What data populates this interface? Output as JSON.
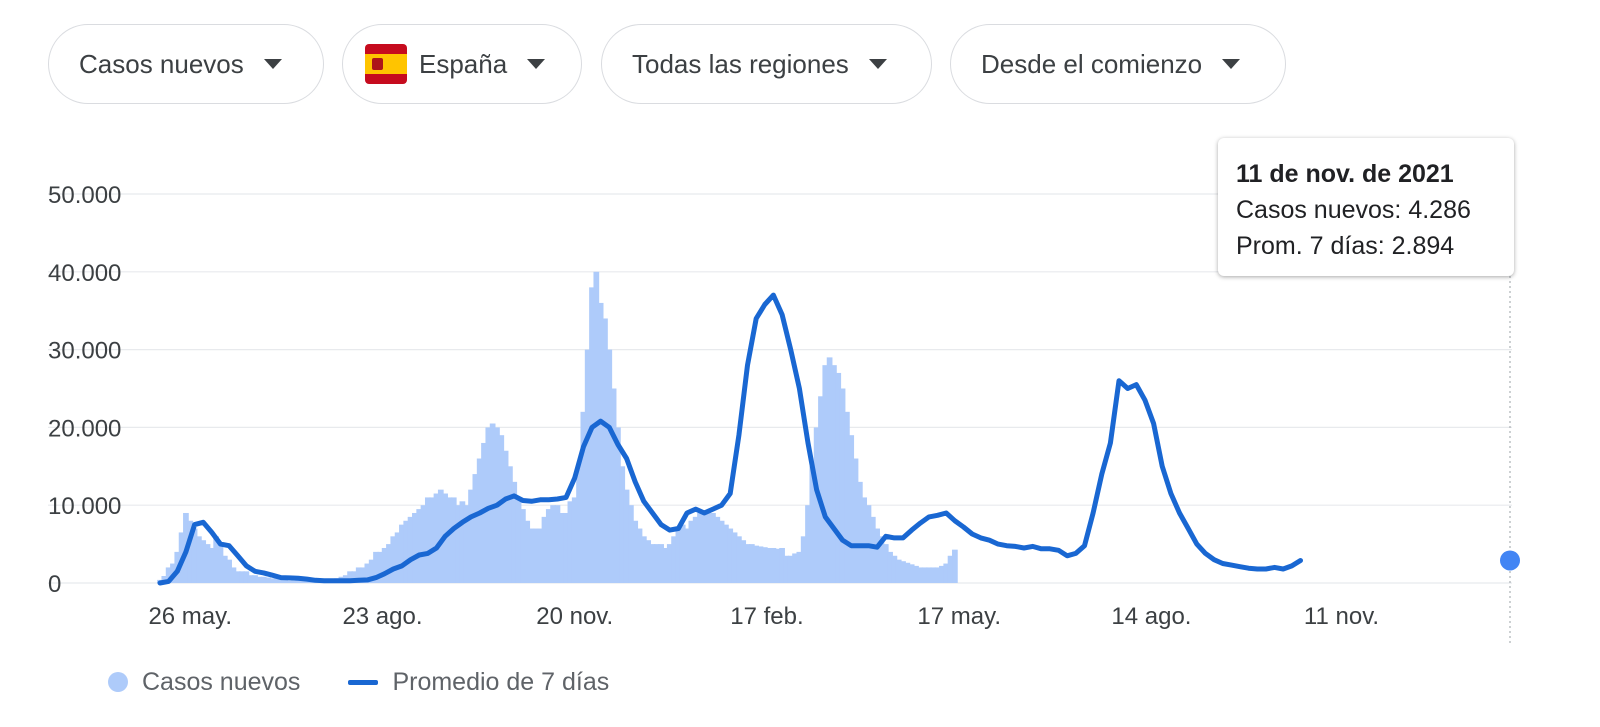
{
  "filters": [
    {
      "label": "Casos nuevos"
    },
    {
      "label": "España",
      "flag": "spain-flag-icon"
    },
    {
      "label": "Todas las regiones"
    },
    {
      "label": "Desde el comienzo"
    }
  ],
  "tooltip": {
    "date": "11 de nov. de 2021",
    "line1": "Casos nuevos: 4.286",
    "line2": "Prom. 7 días: 2.894"
  },
  "legend": {
    "bars": "Casos nuevos",
    "line": "Promedio de 7 días"
  },
  "colors": {
    "bars": "#aecbfa",
    "line": "#1967d2",
    "grid": "#e8eaed",
    "text": "#3c4043"
  },
  "chart_data": {
    "type": "bar",
    "title": "",
    "xlabel": "",
    "ylabel": "",
    "x_start": "2020-02-25",
    "x_end": "2021-11-11",
    "x_ticks": [
      "26 may.",
      "23 ago.",
      "20 nov.",
      "17 feb.",
      "17 may.",
      "14 ago.",
      "11 nov."
    ],
    "y_ticks": [
      "0",
      "10.000",
      "20.000",
      "30.000",
      "40.000",
      "50.000"
    ],
    "ylim": [
      0,
      57000
    ],
    "grid": true,
    "legend_position": "bottom-left",
    "series": [
      {
        "name": "Casos nuevos",
        "kind": "bar",
        "interval_days": 2,
        "values": [
          400,
          900,
          2000,
          2500,
          4000,
          6500,
          9000,
          8000,
          7000,
          6000,
          5500,
          5000,
          4500,
          6000,
          5000,
          3500,
          3000,
          2000,
          1500,
          1500,
          1500,
          1000,
          1000,
          800,
          800,
          700,
          600,
          600,
          500,
          500,
          300,
          300,
          350,
          350,
          300,
          300,
          300,
          400,
          400,
          500,
          500,
          600,
          800,
          1000,
          1500,
          1500,
          2000,
          2000,
          2500,
          3000,
          4000,
          4000,
          4500,
          5000,
          6000,
          6500,
          7500,
          8000,
          8500,
          9000,
          9500,
          10000,
          11000,
          11000,
          11500,
          12000,
          11500,
          11000,
          11000,
          10000,
          10500,
          10000,
          12000,
          14000,
          16000,
          18000,
          20000,
          20500,
          20000,
          19000,
          17000,
          15000,
          13000,
          11000,
          9500,
          8000,
          7000,
          7000,
          7000,
          8500,
          9500,
          10000,
          10000,
          9000,
          9000,
          10500,
          11000,
          15000,
          22000,
          30000,
          38000,
          40000,
          36000,
          34000,
          30000,
          25000,
          20000,
          15000,
          12000,
          10000,
          8000,
          7000,
          6000,
          5500,
          5000,
          5000,
          5000,
          4500,
          5000,
          6000,
          7000,
          7500,
          7000,
          8000,
          8500,
          9000,
          9000,
          9000,
          9000,
          8500,
          8000,
          7500,
          7000,
          6500,
          6000,
          5500,
          5000,
          5000,
          4800,
          4700,
          4600,
          4500,
          4500,
          4400,
          4500,
          3500,
          3500,
          3800,
          4000,
          6000,
          10000,
          15000,
          20000,
          24000,
          28000,
          29000,
          28000,
          27000,
          25000,
          22000,
          19000,
          16000,
          13000,
          11000,
          10000,
          8500,
          7000,
          6000,
          5000,
          4000,
          3500,
          3000,
          2800,
          2600,
          2400,
          2200,
          2000,
          2000,
          2000,
          2000,
          2000,
          2200,
          2500,
          3500,
          4286
        ]
      },
      {
        "name": "Promedio de 7 días",
        "kind": "line",
        "interval_days": 4,
        "values": [
          0,
          200,
          1500,
          4000,
          7500,
          7800,
          6500,
          5000,
          4800,
          3500,
          2200,
          1500,
          1300,
          1000,
          700,
          650,
          600,
          500,
          350,
          300,
          300,
          300,
          300,
          350,
          400,
          700,
          1200,
          1800,
          2200,
          3000,
          3600,
          3800,
          4500,
          6000,
          7000,
          7800,
          8500,
          9000,
          9600,
          10000,
          10800,
          11200,
          10600,
          10500,
          10700,
          10700,
          10800,
          11000,
          13500,
          17500,
          20000,
          20800,
          20000,
          17800,
          16000,
          13000,
          10500,
          9000,
          7500,
          6800,
          7000,
          9000,
          9500,
          9000,
          9500,
          10000,
          11500,
          19000,
          28000,
          34000,
          35800,
          37000,
          34500,
          30000,
          25000,
          18000,
          12000,
          8500,
          7000,
          5500,
          4800,
          4800,
          4800,
          4600,
          6000,
          5800,
          5800,
          6800,
          7700,
          8500,
          8700,
          9000,
          8000,
          7200,
          6300,
          5800,
          5500,
          5000,
          4800,
          4700,
          4500,
          4700,
          4400,
          4400,
          4200,
          3500,
          3800,
          4800,
          9000,
          14000,
          18000,
          26000,
          25000,
          25500,
          23500,
          20500,
          15000,
          11500,
          9000,
          7000,
          5000,
          3800,
          3000,
          2500,
          2300,
          2100,
          1900,
          1800,
          1800,
          2000,
          1800,
          2200,
          2894
        ]
      }
    ]
  }
}
